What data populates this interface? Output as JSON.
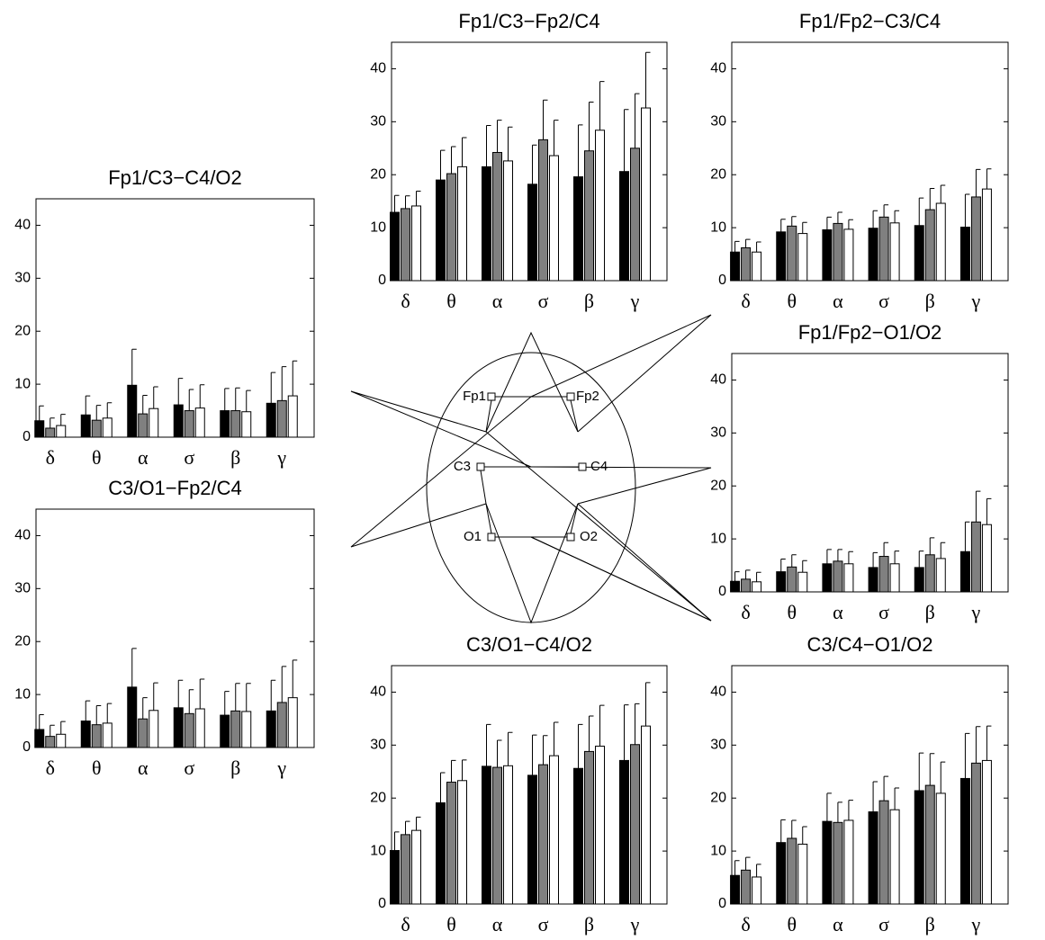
{
  "chart_data": [
    {
      "type": "bar",
      "title": "Fp1/C3−C4/O2",
      "categories": [
        "δ",
        "θ",
        "α",
        "σ",
        "β",
        "γ"
      ],
      "ylim": [
        0,
        45
      ],
      "yticks": [
        0,
        10,
        20,
        30,
        40
      ],
      "series": [
        {
          "color": "#000000",
          "values": [
            3.1,
            4.2,
            9.8,
            6.1,
            5.0,
            6.4
          ],
          "errors": [
            2.8,
            3.6,
            6.8,
            5.0,
            4.2,
            5.8
          ]
        },
        {
          "color": "#808080",
          "values": [
            1.7,
            3.2,
            4.4,
            5.0,
            5.0,
            6.9
          ],
          "errors": [
            1.9,
            2.8,
            3.5,
            4.0,
            4.3,
            6.4
          ]
        },
        {
          "color": "#ffffff",
          "values": [
            2.2,
            3.6,
            5.4,
            5.5,
            4.8,
            7.8
          ],
          "errors": [
            2.1,
            2.9,
            4.1,
            4.4,
            4.0,
            6.6
          ]
        }
      ]
    },
    {
      "type": "bar",
      "title": "C3/O1−Fp2/C4",
      "categories": [
        "δ",
        "θ",
        "α",
        "σ",
        "β",
        "γ"
      ],
      "ylim": [
        0,
        45
      ],
      "yticks": [
        0,
        10,
        20,
        30,
        40
      ],
      "series": [
        {
          "color": "#000000",
          "values": [
            3.4,
            5.0,
            11.4,
            7.5,
            6.1,
            6.9
          ],
          "errors": [
            2.8,
            3.8,
            7.3,
            5.2,
            4.5,
            5.8
          ]
        },
        {
          "color": "#808080",
          "values": [
            2.1,
            4.3,
            5.4,
            6.4,
            6.9,
            8.5
          ],
          "errors": [
            2.1,
            3.6,
            4.0,
            4.5,
            5.2,
            6.8
          ]
        },
        {
          "color": "#ffffff",
          "values": [
            2.5,
            4.6,
            7.0,
            7.3,
            6.8,
            9.4
          ],
          "errors": [
            2.4,
            3.7,
            5.2,
            5.6,
            5.3,
            7.1
          ]
        }
      ]
    },
    {
      "type": "bar",
      "title": "Fp1/C3−Fp2/C4",
      "categories": [
        "δ",
        "θ",
        "α",
        "σ",
        "β",
        "γ"
      ],
      "ylim": [
        0,
        45
      ],
      "yticks": [
        0,
        10,
        20,
        30,
        40
      ],
      "series": [
        {
          "color": "#000000",
          "values": [
            12.9,
            19.0,
            21.5,
            18.2,
            19.6,
            20.6
          ],
          "errors": [
            3.2,
            5.6,
            7.8,
            7.4,
            9.8,
            11.7
          ]
        },
        {
          "color": "#808080",
          "values": [
            13.6,
            20.2,
            24.2,
            26.6,
            24.5,
            25.0
          ],
          "errors": [
            2.4,
            5.1,
            6.1,
            7.5,
            9.2,
            10.3
          ]
        },
        {
          "color": "#ffffff",
          "values": [
            14.1,
            21.5,
            22.6,
            23.6,
            28.4,
            32.6
          ],
          "errors": [
            2.8,
            5.5,
            6.4,
            6.7,
            9.2,
            10.5
          ]
        }
      ]
    },
    {
      "type": "bar",
      "title": "C3/O1−C4/O2",
      "categories": [
        "δ",
        "θ",
        "α",
        "σ",
        "β",
        "γ"
      ],
      "ylim": [
        0,
        45
      ],
      "yticks": [
        0,
        10,
        20,
        30,
        40
      ],
      "series": [
        {
          "color": "#000000",
          "values": [
            10.1,
            19.1,
            26.0,
            24.3,
            25.6,
            27.1
          ],
          "errors": [
            3.5,
            5.7,
            7.9,
            7.6,
            8.3,
            10.5
          ]
        },
        {
          "color": "#808080",
          "values": [
            13.1,
            23.0,
            25.8,
            26.3,
            28.8,
            30.1
          ],
          "errors": [
            2.5,
            4.1,
            5.1,
            5.5,
            6.7,
            7.7
          ]
        },
        {
          "color": "#ffffff",
          "values": [
            13.9,
            23.3,
            26.1,
            28.0,
            29.8,
            33.6
          ],
          "errors": [
            2.5,
            3.9,
            6.3,
            6.3,
            7.7,
            8.2
          ]
        }
      ]
    },
    {
      "type": "bar",
      "title": "Fp1/Fp2−C3/C4",
      "categories": [
        "δ",
        "θ",
        "α",
        "σ",
        "β",
        "γ"
      ],
      "ylim": [
        0,
        45
      ],
      "yticks": [
        0,
        10,
        20,
        30,
        40
      ],
      "series": [
        {
          "color": "#000000",
          "values": [
            5.4,
            9.2,
            9.6,
            9.9,
            10.4,
            10.1
          ],
          "errors": [
            2.0,
            2.4,
            2.4,
            3.3,
            5.2,
            6.2
          ]
        },
        {
          "color": "#808080",
          "values": [
            6.2,
            10.3,
            10.8,
            12.0,
            13.4,
            15.8
          ],
          "errors": [
            1.6,
            1.8,
            2.1,
            2.3,
            4.0,
            5.2
          ]
        },
        {
          "color": "#ffffff",
          "values": [
            5.4,
            8.9,
            9.7,
            10.9,
            14.6,
            17.3
          ],
          "errors": [
            1.9,
            2.1,
            1.8,
            2.3,
            3.4,
            3.8
          ]
        }
      ]
    },
    {
      "type": "bar",
      "title": "Fp1/Fp2−O1/O2",
      "categories": [
        "δ",
        "θ",
        "α",
        "σ",
        "β",
        "γ"
      ],
      "ylim": [
        0,
        45
      ],
      "yticks": [
        0,
        10,
        20,
        30,
        40
      ],
      "series": [
        {
          "color": "#000000",
          "values": [
            2.0,
            3.8,
            5.3,
            4.6,
            4.6,
            7.6
          ],
          "errors": [
            1.8,
            2.4,
            2.7,
            2.8,
            3.1,
            5.6
          ]
        },
        {
          "color": "#808080",
          "values": [
            2.4,
            4.7,
            5.8,
            6.7,
            7.0,
            13.2
          ],
          "errors": [
            1.7,
            2.3,
            2.2,
            2.6,
            3.2,
            5.8
          ]
        },
        {
          "color": "#ffffff",
          "values": [
            1.9,
            3.7,
            5.3,
            5.3,
            6.3,
            12.7
          ],
          "errors": [
            1.8,
            2.2,
            2.3,
            2.4,
            3.0,
            4.9
          ]
        }
      ]
    },
    {
      "type": "bar",
      "title": "C3/C4−O1/O2",
      "categories": [
        "δ",
        "θ",
        "α",
        "σ",
        "β",
        "γ"
      ],
      "ylim": [
        0,
        45
      ],
      "yticks": [
        0,
        10,
        20,
        30,
        40
      ],
      "series": [
        {
          "color": "#000000",
          "values": [
            5.4,
            11.6,
            15.6,
            17.4,
            21.4,
            23.7
          ],
          "errors": [
            2.8,
            4.3,
            5.3,
            5.7,
            7.1,
            8.5
          ]
        },
        {
          "color": "#808080",
          "values": [
            6.4,
            12.4,
            15.4,
            19.5,
            22.4,
            26.6
          ],
          "errors": [
            2.4,
            3.4,
            3.8,
            4.6,
            6.0,
            6.9
          ]
        },
        {
          "color": "#ffffff",
          "values": [
            5.1,
            11.3,
            15.8,
            17.8,
            20.9,
            27.1
          ],
          "errors": [
            2.4,
            3.3,
            3.8,
            4.1,
            5.9,
            6.5
          ]
        }
      ]
    }
  ],
  "diagram": {
    "electrodes": [
      "Fp1",
      "Fp2",
      "C3",
      "C4",
      "O1",
      "O2"
    ]
  }
}
